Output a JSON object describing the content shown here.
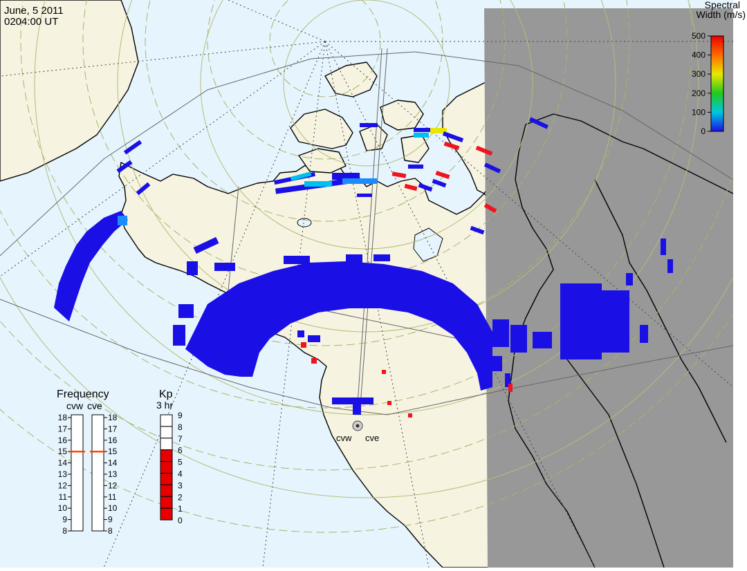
{
  "header": {
    "date": "June, 5 2011",
    "time": "0204:00 UT"
  },
  "colorbar": {
    "title_line1": "Spectral",
    "title_line2": "Width (m/s)",
    "ticks": [
      "500",
      "400",
      "300",
      "200",
      "100",
      "0"
    ]
  },
  "frequency_panel": {
    "title": "Frequency",
    "radars": [
      "cvw",
      "cve"
    ],
    "scale": [
      "18",
      "17",
      "16",
      "15",
      "14",
      "13",
      "12",
      "11",
      "10",
      "9",
      "8"
    ],
    "values_mhz": [
      15,
      15
    ]
  },
  "kp_panel": {
    "title": "Kp",
    "subtitle": "3 hr",
    "scale": [
      "9",
      "8",
      "7",
      "6",
      "5",
      "4",
      "3",
      "2",
      "1",
      "0"
    ],
    "value": 6
  },
  "stations": [
    {
      "label": "cvw"
    },
    {
      "label": "cve"
    }
  ],
  "colors": {
    "ocean": "#e6f4fd",
    "land": "#f6f3e1",
    "night": "#989898",
    "scatter_low": "#1a10e6",
    "scatter_high": "#f0141e",
    "kp_fill": "#e80000",
    "freq_marker": "#ff4500"
  }
}
